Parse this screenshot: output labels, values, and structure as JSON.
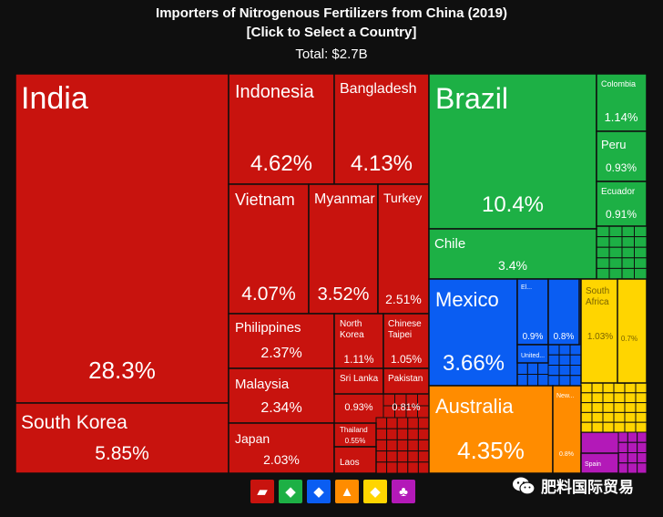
{
  "header": {
    "title": "Importers of Nitrogenous Fertilizers from China (2019)",
    "subtitle": "[Click to Select a Country]",
    "total": "Total: $2.7B"
  },
  "colors": {
    "asia": "#c8130e",
    "south_america": "#1db045",
    "north_america": "#0a5df2",
    "oceania": "#ff8c00",
    "africa": "#ffd500",
    "europe": "#b319b8",
    "border": "#0f0f0f"
  },
  "chart_data": {
    "type": "treemap",
    "title": "Importers of Nitrogenous Fertilizers from China (2019)",
    "total": "$2.7B",
    "tiles": [
      {
        "name": "India",
        "value": "28.3%",
        "group": "asia"
      },
      {
        "name": "South Korea",
        "value": "5.85%",
        "group": "asia"
      },
      {
        "name": "Indonesia",
        "value": "4.62%",
        "group": "asia"
      },
      {
        "name": "Bangladesh",
        "value": "4.13%",
        "group": "asia"
      },
      {
        "name": "Vietnam",
        "value": "4.07%",
        "group": "asia"
      },
      {
        "name": "Myanmar",
        "value": "3.52%",
        "group": "asia"
      },
      {
        "name": "Turkey",
        "value": "2.51%",
        "group": "asia"
      },
      {
        "name": "Philippines",
        "value": "2.37%",
        "group": "asia"
      },
      {
        "name": "North Korea",
        "value": "1.11%",
        "group": "asia"
      },
      {
        "name": "Chinese Taipei",
        "value": "1.05%",
        "group": "asia"
      },
      {
        "name": "Malaysia",
        "value": "2.34%",
        "group": "asia"
      },
      {
        "name": "Sri Lanka",
        "value": "0.93%",
        "group": "asia"
      },
      {
        "name": "Pakistan",
        "value": "0.81%",
        "group": "asia"
      },
      {
        "name": "Japan",
        "value": "2.03%",
        "group": "asia"
      },
      {
        "name": "Thailand",
        "value": "0.55%",
        "group": "asia"
      },
      {
        "name": "Laos",
        "value": "",
        "group": "asia"
      },
      {
        "name": "Brazil",
        "value": "10.4%",
        "group": "south_america"
      },
      {
        "name": "Chile",
        "value": "3.4%",
        "group": "south_america"
      },
      {
        "name": "Colombia",
        "value": "1.14%",
        "group": "south_america"
      },
      {
        "name": "Peru",
        "value": "0.93%",
        "group": "south_america"
      },
      {
        "name": "Ecuador",
        "value": "0.91%",
        "group": "south_america"
      },
      {
        "name": "Mexico",
        "value": "3.66%",
        "group": "north_america"
      },
      {
        "name": "El...",
        "value": "0.9%",
        "group": "north_america"
      },
      {
        "name": "",
        "value": "0.8%",
        "group": "north_america"
      },
      {
        "name": "United...",
        "value": "",
        "group": "north_america"
      },
      {
        "name": "Australia",
        "value": "4.35%",
        "group": "oceania"
      },
      {
        "name": "New...",
        "value": "0.8%",
        "group": "oceania"
      },
      {
        "name": "South Africa",
        "value": "1.03%",
        "group": "africa"
      },
      {
        "name": "",
        "value": "0.7%",
        "group": "africa"
      },
      {
        "name": "Spain",
        "value": "",
        "group": "europe"
      }
    ]
  },
  "legend": [
    {
      "group": "asia",
      "icon": "asia-map-icon",
      "glyph": "▰"
    },
    {
      "group": "south_america",
      "icon": "south-america-map-icon",
      "glyph": "◆"
    },
    {
      "group": "north_america",
      "icon": "north-america-map-icon",
      "glyph": "◆"
    },
    {
      "group": "oceania",
      "icon": "oceania-map-icon",
      "glyph": "▲"
    },
    {
      "group": "africa",
      "icon": "africa-map-icon",
      "glyph": "◆"
    },
    {
      "group": "europe",
      "icon": "europe-map-icon",
      "glyph": "♣"
    }
  ],
  "watermark": {
    "icon": "wechat-icon",
    "text": "肥料国际贸易"
  }
}
